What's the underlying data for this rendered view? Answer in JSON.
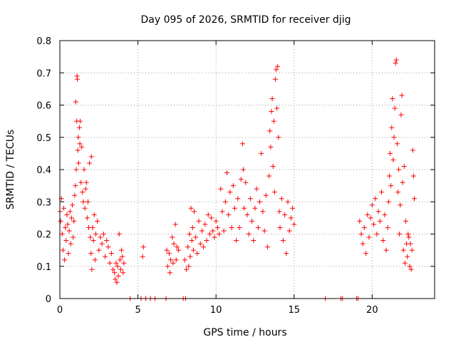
{
  "chart_data": {
    "type": "scatter",
    "title": "Day 095 of 2026, SRMTID for receiver djig",
    "xlabel": "GPS time / hours",
    "ylabel": "SRMTID / TECUs",
    "xlim": [
      0,
      24
    ],
    "ylim": [
      0,
      0.8
    ],
    "xticks": [
      0,
      5,
      10,
      15,
      20
    ],
    "yticks": [
      0,
      0.1,
      0.2,
      0.3,
      0.4,
      0.5,
      0.6,
      0.7,
      0.8
    ],
    "xtick_labels": [
      "0",
      "5",
      "10",
      "15",
      "20"
    ],
    "ytick_labels": [
      "0",
      "0.1",
      "0.2",
      "0.3",
      "0.4",
      "0.5",
      "0.6",
      "0.7",
      "0.8"
    ],
    "grid": true,
    "marker": "+",
    "color": "#ff0000",
    "series": [
      {
        "name": "SRMTID",
        "points": [
          [
            0.0,
            0.27
          ],
          [
            0.05,
            0.24
          ],
          [
            0.1,
            0.31
          ],
          [
            0.15,
            0.2
          ],
          [
            0.2,
            0.15
          ],
          [
            0.25,
            0.28
          ],
          [
            0.3,
            0.12
          ],
          [
            0.35,
            0.22
          ],
          [
            0.4,
            0.18
          ],
          [
            0.45,
            0.26
          ],
          [
            0.5,
            0.23
          ],
          [
            0.55,
            0.14
          ],
          [
            0.6,
            0.21
          ],
          [
            0.65,
            0.27
          ],
          [
            0.7,
            0.17
          ],
          [
            0.75,
            0.25
          ],
          [
            0.8,
            0.29
          ],
          [
            0.85,
            0.19
          ],
          [
            0.9,
            0.24
          ],
          [
            0.95,
            0.32
          ],
          [
            1.0,
            0.35
          ],
          [
            1.02,
            0.61
          ],
          [
            1.05,
            0.4
          ],
          [
            1.08,
            0.55
          ],
          [
            1.1,
            0.69
          ],
          [
            1.12,
            0.68
          ],
          [
            1.15,
            0.46
          ],
          [
            1.18,
            0.5
          ],
          [
            1.2,
            0.42
          ],
          [
            1.25,
            0.53
          ],
          [
            1.28,
            0.48
          ],
          [
            1.3,
            0.55
          ],
          [
            1.35,
            0.36
          ],
          [
            1.4,
            0.47
          ],
          [
            1.45,
            0.33
          ],
          [
            1.5,
            0.3
          ],
          [
            1.55,
            0.4
          ],
          [
            1.6,
            0.28
          ],
          [
            1.65,
            0.34
          ],
          [
            1.7,
            0.36
          ],
          [
            1.75,
            0.25
          ],
          [
            1.8,
            0.3
          ],
          [
            1.85,
            0.22
          ],
          [
            1.9,
            0.42
          ],
          [
            1.95,
            0.19
          ],
          [
            2.0,
            0.14
          ],
          [
            2.02,
            0.44
          ],
          [
            2.05,
            0.09
          ],
          [
            2.1,
            0.22
          ],
          [
            2.15,
            0.18
          ],
          [
            2.2,
            0.26
          ],
          [
            2.25,
            0.12
          ],
          [
            2.3,
            0.2
          ],
          [
            2.4,
            0.24
          ],
          [
            2.5,
            0.15
          ],
          [
            2.6,
            0.19
          ],
          [
            2.7,
            0.17
          ],
          [
            2.8,
            0.2
          ],
          [
            2.9,
            0.13
          ],
          [
            3.0,
            0.18
          ],
          [
            3.1,
            0.16
          ],
          [
            3.2,
            0.11
          ],
          [
            3.3,
            0.14
          ],
          [
            3.4,
            0.09
          ],
          [
            3.5,
            0.08
          ],
          [
            3.55,
            0.06
          ],
          [
            3.6,
            0.11
          ],
          [
            3.65,
            0.05
          ],
          [
            3.7,
            0.1
          ],
          [
            3.75,
            0.07
          ],
          [
            3.8,
            0.2
          ],
          [
            3.85,
            0.12
          ],
          [
            3.9,
            0.09
          ],
          [
            3.95,
            0.15
          ],
          [
            4.0,
            0.13
          ],
          [
            4.05,
            0.08
          ],
          [
            4.1,
            0.11
          ],
          [
            4.5,
            0.0
          ],
          [
            5.2,
            0.0
          ],
          [
            5.3,
            0.13
          ],
          [
            5.35,
            0.16
          ],
          [
            5.5,
            0.0
          ],
          [
            5.8,
            0.0
          ],
          [
            6.1,
            0.0
          ],
          [
            6.8,
            0.0
          ],
          [
            6.85,
            0.15
          ],
          [
            6.9,
            0.1
          ],
          [
            7.0,
            0.14
          ],
          [
            7.05,
            0.08
          ],
          [
            7.1,
            0.12
          ],
          [
            7.2,
            0.19
          ],
          [
            7.25,
            0.11
          ],
          [
            7.3,
            0.17
          ],
          [
            7.4,
            0.23
          ],
          [
            7.45,
            0.12
          ],
          [
            7.5,
            0.16
          ],
          [
            7.6,
            0.15
          ],
          [
            7.9,
            0.0
          ],
          [
            8.0,
            0.12
          ],
          [
            8.05,
            0.0
          ],
          [
            8.1,
            0.09
          ],
          [
            8.2,
            0.16
          ],
          [
            8.25,
            0.1
          ],
          [
            8.3,
            0.2
          ],
          [
            8.35,
            0.13
          ],
          [
            8.4,
            0.28
          ],
          [
            8.45,
            0.18
          ],
          [
            8.5,
            0.22
          ],
          [
            8.55,
            0.15
          ],
          [
            8.6,
            0.27
          ],
          [
            8.7,
            0.19
          ],
          [
            8.8,
            0.14
          ],
          [
            8.9,
            0.24
          ],
          [
            9.0,
            0.17
          ],
          [
            9.1,
            0.21
          ],
          [
            9.2,
            0.16
          ],
          [
            9.3,
            0.23
          ],
          [
            9.4,
            0.18
          ],
          [
            9.5,
            0.26
          ],
          [
            9.6,
            0.2
          ],
          [
            9.7,
            0.25
          ],
          [
            9.8,
            0.21
          ],
          [
            9.9,
            0.19
          ],
          [
            10.0,
            0.24
          ],
          [
            10.1,
            0.22
          ],
          [
            10.2,
            0.2
          ],
          [
            10.3,
            0.34
          ],
          [
            10.4,
            0.27
          ],
          [
            10.5,
            0.21
          ],
          [
            10.6,
            0.3
          ],
          [
            10.7,
            0.39
          ],
          [
            10.8,
            0.26
          ],
          [
            10.9,
            0.33
          ],
          [
            11.0,
            0.22
          ],
          [
            11.1,
            0.35
          ],
          [
            11.2,
            0.28
          ],
          [
            11.3,
            0.18
          ],
          [
            11.4,
            0.31
          ],
          [
            11.5,
            0.22
          ],
          [
            11.6,
            0.37
          ],
          [
            11.7,
            0.48
          ],
          [
            11.75,
            0.4
          ],
          [
            11.8,
            0.28
          ],
          [
            11.9,
            0.36
          ],
          [
            12.0,
            0.26
          ],
          [
            12.1,
            0.2
          ],
          [
            12.2,
            0.31
          ],
          [
            12.3,
            0.24
          ],
          [
            12.4,
            0.18
          ],
          [
            12.5,
            0.28
          ],
          [
            12.6,
            0.34
          ],
          [
            12.7,
            0.22
          ],
          [
            12.8,
            0.3
          ],
          [
            12.9,
            0.45
          ],
          [
            13.0,
            0.27
          ],
          [
            13.1,
            0.21
          ],
          [
            13.2,
            0.32
          ],
          [
            13.3,
            0.16
          ],
          [
            13.4,
            0.38
          ],
          [
            13.45,
            0.52
          ],
          [
            13.5,
            0.47
          ],
          [
            13.55,
            0.58
          ],
          [
            13.6,
            0.62
          ],
          [
            13.65,
            0.41
          ],
          [
            13.7,
            0.55
          ],
          [
            13.75,
            0.33
          ],
          [
            13.8,
            0.68
          ],
          [
            13.85,
            0.71
          ],
          [
            13.9,
            0.59
          ],
          [
            13.95,
            0.72
          ],
          [
            14.0,
            0.5
          ],
          [
            14.05,
            0.27
          ],
          [
            14.1,
            0.22
          ],
          [
            14.2,
            0.31
          ],
          [
            14.3,
            0.18
          ],
          [
            14.4,
            0.26
          ],
          [
            14.5,
            0.14
          ],
          [
            14.6,
            0.3
          ],
          [
            14.7,
            0.21
          ],
          [
            14.8,
            0.25
          ],
          [
            14.9,
            0.28
          ],
          [
            15.0,
            0.23
          ],
          [
            17.0,
            0.0
          ],
          [
            18.0,
            0.0
          ],
          [
            18.1,
            0.0
          ],
          [
            19.0,
            0.0
          ],
          [
            19.1,
            0.0
          ],
          [
            19.2,
            0.24
          ],
          [
            19.3,
            0.2
          ],
          [
            19.4,
            0.17
          ],
          [
            19.5,
            0.22
          ],
          [
            19.6,
            0.14
          ],
          [
            19.7,
            0.26
          ],
          [
            19.8,
            0.19
          ],
          [
            19.9,
            0.25
          ],
          [
            20.0,
            0.29
          ],
          [
            20.1,
            0.23
          ],
          [
            20.2,
            0.31
          ],
          [
            20.3,
            0.2
          ],
          [
            20.4,
            0.27
          ],
          [
            20.5,
            0.24
          ],
          [
            20.6,
            0.33
          ],
          [
            20.7,
            0.18
          ],
          [
            20.8,
            0.26
          ],
          [
            20.9,
            0.15
          ],
          [
            21.0,
            0.22
          ],
          [
            21.05,
            0.3
          ],
          [
            21.1,
            0.38
          ],
          [
            21.15,
            0.45
          ],
          [
            21.2,
            0.35
          ],
          [
            21.25,
            0.53
          ],
          [
            21.3,
            0.62
          ],
          [
            21.35,
            0.43
          ],
          [
            21.4,
            0.5
          ],
          [
            21.45,
            0.59
          ],
          [
            21.5,
            0.73
          ],
          [
            21.55,
            0.74
          ],
          [
            21.6,
            0.48
          ],
          [
            21.65,
            0.33
          ],
          [
            21.7,
            0.4
          ],
          [
            21.75,
            0.2
          ],
          [
            21.8,
            0.29
          ],
          [
            21.85,
            0.57
          ],
          [
            21.9,
            0.63
          ],
          [
            21.95,
            0.36
          ],
          [
            22.0,
            0.15
          ],
          [
            22.05,
            0.41
          ],
          [
            22.1,
            0.11
          ],
          [
            22.15,
            0.24
          ],
          [
            22.2,
            0.17
          ],
          [
            22.25,
            0.13
          ],
          [
            22.3,
            0.2
          ],
          [
            22.35,
            0.19
          ],
          [
            22.4,
            0.1
          ],
          [
            22.45,
            0.17
          ],
          [
            22.5,
            0.09
          ],
          [
            22.55,
            0.15
          ],
          [
            22.6,
            0.46
          ],
          [
            22.65,
            0.38
          ],
          [
            22.7,
            0.31
          ]
        ]
      }
    ]
  }
}
